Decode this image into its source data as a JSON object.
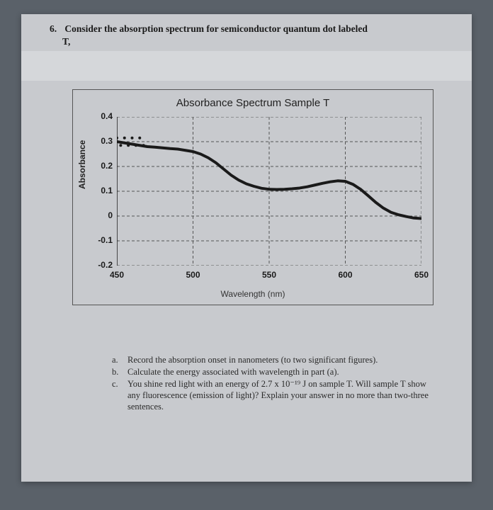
{
  "question": {
    "number": "6.",
    "prompt_line1": "Consider the absorption spectrum for semiconductor quantum dot labeled",
    "prompt_line2": "T,"
  },
  "chart": {
    "type": "line",
    "title": "Absorbance Spectrum Sample T",
    "xlabel": "Wavelength (nm)",
    "ylabel": "Absorbance",
    "xlim": [
      450,
      650
    ],
    "ylim": [
      -0.2,
      0.4
    ],
    "xticks": [
      450,
      500,
      550,
      600,
      650
    ],
    "yticks": [
      -0.2,
      -0.1,
      0,
      0.1,
      0.2,
      0.3,
      0.4
    ],
    "line_color": "#1a1a1a",
    "line_width": 4,
    "grid_color": "#555555",
    "grid_dash": "4,3",
    "background_color": "#c8cace",
    "axis_color": "#1a1a1a",
    "tick_fontsize": 12,
    "label_fontsize": 12,
    "title_fontsize": 15,
    "series": {
      "x": [
        450,
        455,
        460,
        465,
        470,
        475,
        480,
        485,
        490,
        495,
        500,
        505,
        510,
        515,
        520,
        525,
        530,
        535,
        540,
        545,
        550,
        555,
        560,
        565,
        570,
        575,
        580,
        585,
        590,
        595,
        600,
        605,
        610,
        615,
        620,
        625,
        630,
        635,
        640,
        645,
        650
      ],
      "y": [
        0.3,
        0.295,
        0.29,
        0.285,
        0.28,
        0.278,
        0.275,
        0.272,
        0.27,
        0.265,
        0.26,
        0.25,
        0.235,
        0.215,
        0.19,
        0.165,
        0.145,
        0.13,
        0.12,
        0.112,
        0.108,
        0.107,
        0.108,
        0.11,
        0.113,
        0.118,
        0.125,
        0.132,
        0.138,
        0.142,
        0.14,
        0.128,
        0.108,
        0.082,
        0.055,
        0.032,
        0.015,
        0.005,
        -0.002,
        -0.008,
        -0.01
      ]
    }
  },
  "subs": {
    "a": {
      "letter": "a.",
      "text": "Record the absorption onset in nanometers (to two significant figures)."
    },
    "b": {
      "letter": "b.",
      "text_pre": "Calculate the energy associated with wavelength in part (a)."
    },
    "c": {
      "letter": "c.",
      "text": "You shine red light with an energy of 2.7 x 10⁻¹⁹ J on sample T. Will sample T show any fluorescence (emission of light)? Explain your answer in no more than two-three sentences."
    }
  }
}
